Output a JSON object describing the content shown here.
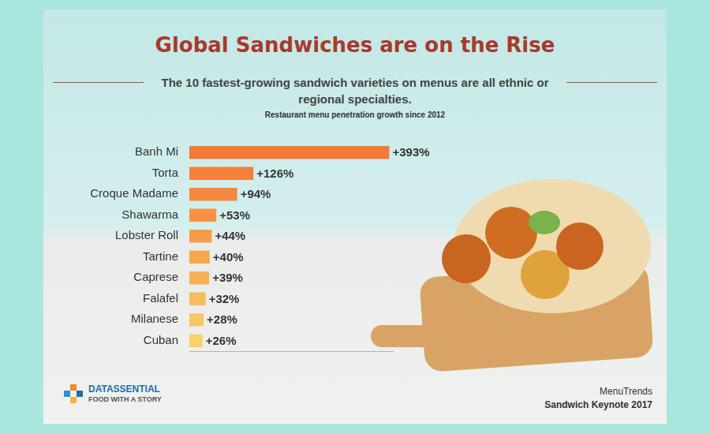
{
  "chart_data": {
    "type": "bar",
    "orientation": "horizontal",
    "title": "Global Sandwiches are on the Rise",
    "subtitle": "The 10 fastest-growing sandwich varieties on menus are all ethnic or regional specialties.",
    "annotations": [
      "Restaurant menu penetration growth since 2012",
      "DATASSENTIAL",
      "FOOD WITH A STORY",
      "MenuTrends",
      "Sandwich Keynote 2017"
    ],
    "categories": [
      "Banh Mi",
      "Torta",
      "Croque Madame",
      "Shawarma",
      "Lobster Roll",
      "Tartine",
      "Caprese",
      "Falafel",
      "Milanese",
      "Cuban"
    ],
    "values": [
      393,
      126,
      94,
      53,
      44,
      40,
      39,
      32,
      28,
      26
    ],
    "value_labels": [
      "+393%",
      "+126%",
      "+94%",
      "+53%",
      "+44%",
      "+40%",
      "+39%",
      "+32%",
      "+28%",
      "+26%"
    ],
    "colors": [
      "#f47a38",
      "#f5803c",
      "#f58840",
      "#f69245",
      "#f69c4a",
      "#f7a750",
      "#f7b056",
      "#f8bc5d",
      "#f8c762",
      "#f9d268"
    ],
    "xlim": [
      0,
      400
    ],
    "xticks": [],
    "grid": false,
    "data_labels": true,
    "tick_labels": "y"
  }
}
